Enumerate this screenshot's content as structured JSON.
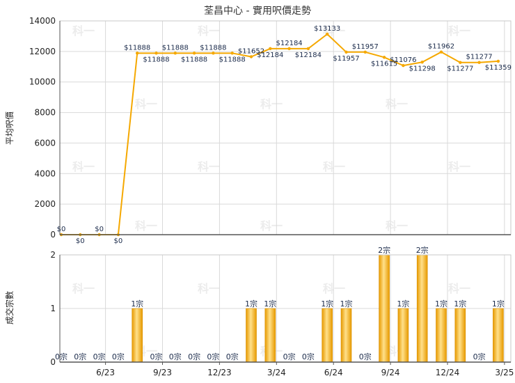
{
  "title": "荃昌中心 - 實用呎價走勢",
  "watermark": "科一",
  "colors": {
    "line": "#f5a800",
    "bar_light": "#ffe08a",
    "bar_dark": "#e79a00",
    "grid": "#d9d9d9",
    "axis": "#555555"
  },
  "chart_data": [
    {
      "type": "line",
      "title": "荃昌中心 - 實用呎價走勢",
      "ylabel": "平均呎價",
      "ylim": [
        0,
        14000
      ],
      "yticks": [
        "0",
        "2000",
        "4000",
        "6000",
        "8000",
        "10000",
        "12000",
        "14000"
      ],
      "grid": true,
      "x": [
        0,
        1,
        2,
        3,
        4,
        5,
        6,
        7,
        8,
        9,
        10,
        11,
        12,
        13,
        14,
        15,
        16,
        17,
        18,
        19,
        20,
        21,
        22,
        23
      ],
      "values": [
        0,
        0,
        0,
        0,
        11888,
        11888,
        11888,
        11888,
        11888,
        11888,
        11652,
        12184,
        12184,
        12184,
        13133,
        11957,
        11957,
        11615,
        11076,
        11298,
        11962,
        11277,
        11277,
        11359
      ],
      "labels": [
        "$0",
        "$0",
        "$0",
        "$0",
        "$11888",
        "$11888",
        "$11888",
        "$11888",
        "$11888",
        "$11888",
        "$11652",
        "$12184",
        "$12184",
        "$12184",
        "$13133",
        "$11957",
        "$11957",
        "$11615",
        "$11076",
        "$11298",
        "$11962",
        "$11277",
        "$11277",
        "$11359"
      ]
    },
    {
      "type": "bar",
      "ylabel": "成交宗數",
      "ylim": [
        0,
        2
      ],
      "yticks": [
        "0",
        "1",
        "2"
      ],
      "grid": true,
      "x": [
        0,
        1,
        2,
        3,
        4,
        5,
        6,
        7,
        8,
        9,
        10,
        11,
        12,
        13,
        14,
        15,
        16,
        17,
        18,
        19,
        20,
        21,
        22,
        23
      ],
      "values": [
        0,
        0,
        0,
        0,
        1,
        0,
        0,
        0,
        0,
        0,
        1,
        1,
        0,
        0,
        1,
        1,
        0,
        2,
        1,
        2,
        1,
        1,
        0,
        1
      ],
      "labels": [
        "0宗",
        "0宗",
        "0宗",
        "0宗",
        "1宗",
        "0宗",
        "0宗",
        "0宗",
        "0宗",
        "0宗",
        "1宗",
        "1宗",
        "0宗",
        "0宗",
        "1宗",
        "1宗",
        "0宗",
        "2宗",
        "1宗",
        "2宗",
        "1宗",
        "1宗",
        "0宗",
        "1宗"
      ],
      "xticks": [
        {
          "x": 2,
          "label": "6/23"
        },
        {
          "x": 5,
          "label": "9/23"
        },
        {
          "x": 8,
          "label": "12/23"
        },
        {
          "x": 11,
          "label": "3/24"
        },
        {
          "x": 14,
          "label": "6/24"
        },
        {
          "x": 17,
          "label": "9/24"
        },
        {
          "x": 20,
          "label": "12/24"
        },
        {
          "x": 23,
          "label": "3/25"
        }
      ]
    }
  ]
}
